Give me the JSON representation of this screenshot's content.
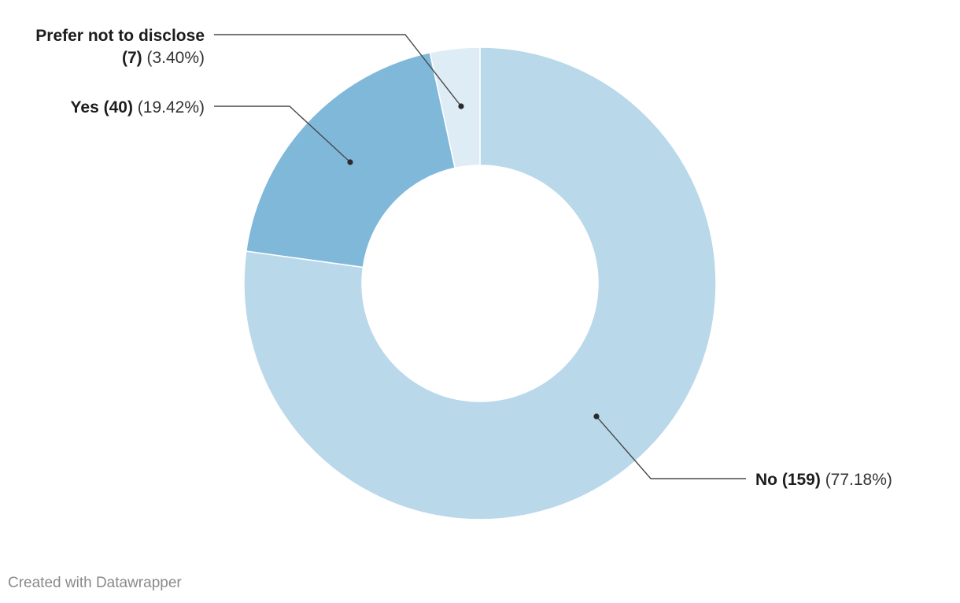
{
  "chart_data": {
    "type": "pie",
    "variant": "donut",
    "categories": [
      "Prefer not to disclose",
      "Yes",
      "No"
    ],
    "counts": [
      7,
      40,
      159
    ],
    "values": [
      3.4,
      19.42,
      77.18
    ],
    "labels": [
      {
        "name_bold": "Prefer not to disclose",
        "count_bold": "(7)",
        "percent": "(3.40%)"
      },
      {
        "name_bold": "Yes",
        "count_bold": "(40)",
        "percent": "(19.42%)"
      },
      {
        "name_bold": "No",
        "count_bold": "(159)",
        "percent": "(77.18%)"
      }
    ],
    "colors": [
      "#deecf6",
      "#80b8d9",
      "#b9d8ea"
    ]
  },
  "footer": {
    "credit": "Created with Datawrapper"
  }
}
